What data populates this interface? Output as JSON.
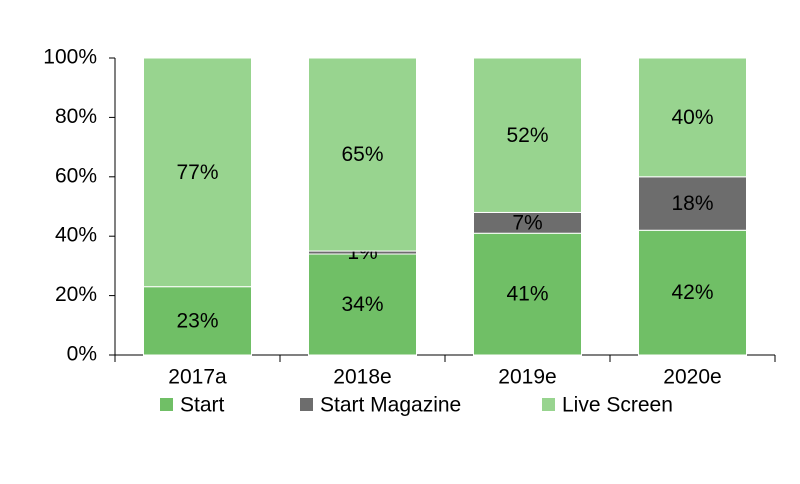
{
  "chart_data": {
    "type": "stacked-bar",
    "categories": [
      "2017a",
      "2018e",
      "2019e",
      "2020e"
    ],
    "series": [
      {
        "name": "Start",
        "color": "#70bf66",
        "values": [
          23,
          34,
          41,
          42
        ],
        "value_labels": [
          "23%",
          "34%",
          "41%",
          "42%"
        ]
      },
      {
        "name": "Start Magazine",
        "color": "#6d6d6d",
        "values": [
          null,
          1,
          7,
          18
        ],
        "value_labels": [
          null,
          "1%",
          "7%",
          "18%"
        ]
      },
      {
        "name": "Live Screen",
        "color": "#98d48f",
        "values": [
          77,
          65,
          52,
          40
        ],
        "value_labels": [
          "77%",
          "65%",
          "52%",
          "40%"
        ]
      }
    ],
    "ylim": [
      0,
      100
    ],
    "yticks": [
      {
        "value": 0,
        "label": "0%"
      },
      {
        "value": 20,
        "label": "20%"
      },
      {
        "value": 40,
        "label": "40%"
      },
      {
        "value": 60,
        "label": "60%"
      },
      {
        "value": 80,
        "label": "80%"
      },
      {
        "value": 100,
        "label": "100%"
      }
    ],
    "legend": "bottom"
  }
}
